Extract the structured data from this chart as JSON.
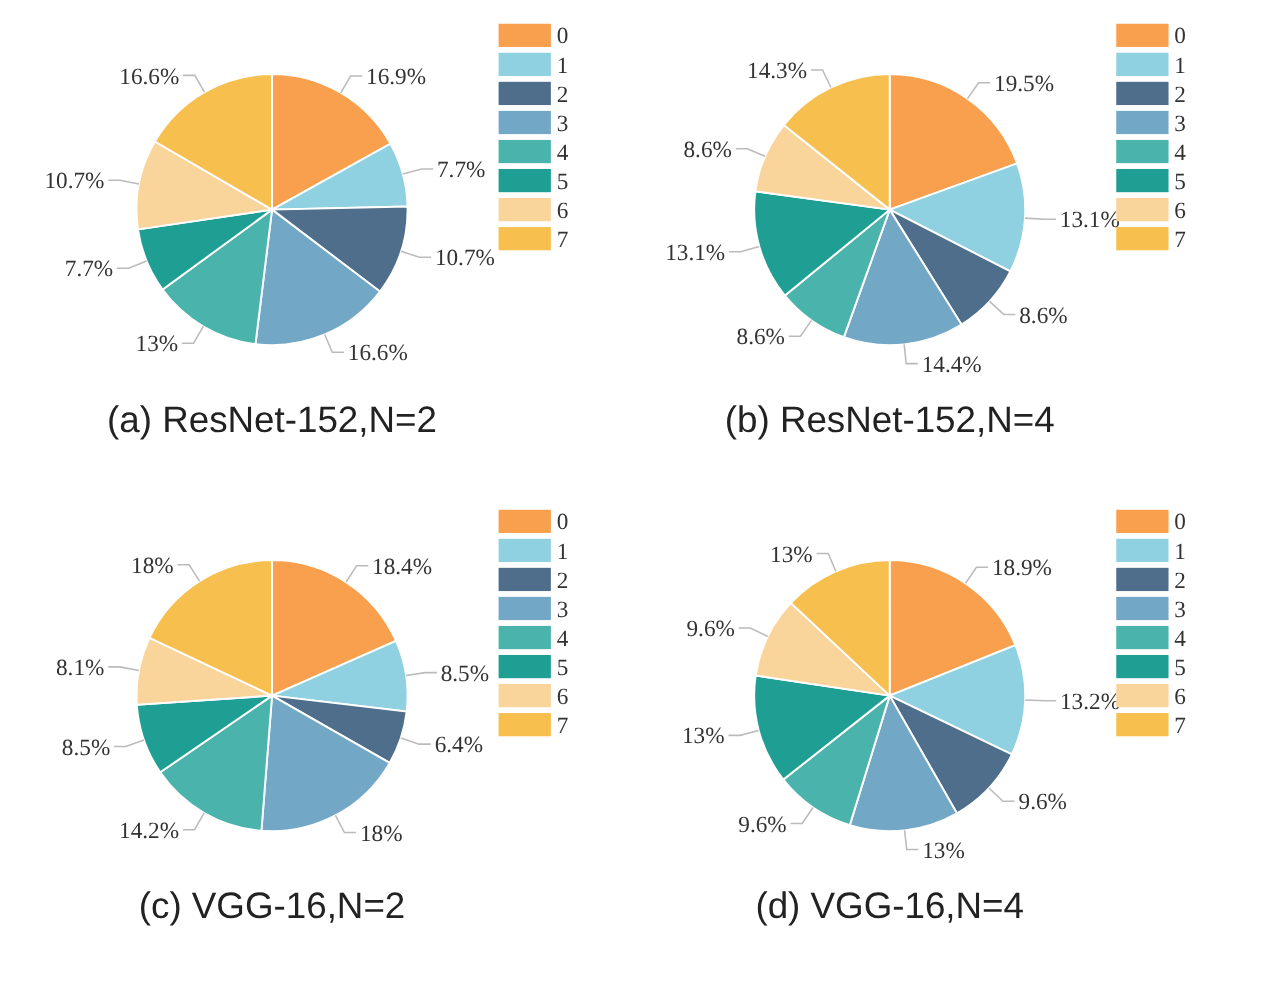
{
  "chart_data": [
    {
      "type": "pie",
      "title": "(a) ResNet-152,N=2",
      "categories": [
        "0",
        "1",
        "2",
        "3",
        "4",
        "5",
        "6",
        "7"
      ],
      "values": [
        16.9,
        7.7,
        10.7,
        16.6,
        13,
        7.7,
        10.7,
        16.6
      ],
      "value_labels": [
        "16.9%",
        "7.7%",
        "10.7%",
        "16.6%",
        "13%",
        "7.7%",
        "10.7%",
        "16.6%"
      ],
      "colors": [
        "#f9a04f",
        "#8fd1e1",
        "#4e6e8b",
        "#72a8c6",
        "#4ab3ab",
        "#1f9e93",
        "#f9d49b",
        "#f7bf4d"
      ],
      "legend": "right"
    },
    {
      "type": "pie",
      "title": "(b) ResNet-152,N=4",
      "categories": [
        "0",
        "1",
        "2",
        "3",
        "4",
        "5",
        "6",
        "7"
      ],
      "values": [
        19.5,
        13.1,
        8.6,
        14.4,
        8.6,
        13.1,
        8.6,
        14.3
      ],
      "value_labels": [
        "19.5%",
        "13.1%",
        "8.6%",
        "14.4%",
        "8.6%",
        "13.1%",
        "8.6%",
        "14.3%"
      ],
      "colors": [
        "#f9a04f",
        "#8fd1e1",
        "#4e6e8b",
        "#72a8c6",
        "#4ab3ab",
        "#1f9e93",
        "#f9d49b",
        "#f7bf4d"
      ],
      "legend": "right"
    },
    {
      "type": "pie",
      "title": "(c) VGG-16,N=2",
      "categories": [
        "0",
        "1",
        "2",
        "3",
        "4",
        "5",
        "6",
        "7"
      ],
      "values": [
        18.4,
        8.5,
        6.4,
        18,
        14.2,
        8.5,
        8.1,
        18
      ],
      "value_labels": [
        "18.4%",
        "8.5%",
        "6.4%",
        "18%",
        "14.2%",
        "8.5%",
        "8.1%",
        "18%"
      ],
      "colors": [
        "#f9a04f",
        "#8fd1e1",
        "#4e6e8b",
        "#72a8c6",
        "#4ab3ab",
        "#1f9e93",
        "#f9d49b",
        "#f7bf4d"
      ],
      "legend": "right"
    },
    {
      "type": "pie",
      "title": "(d) VGG-16,N=4",
      "categories": [
        "0",
        "1",
        "2",
        "3",
        "4",
        "5",
        "6",
        "7"
      ],
      "values": [
        18.9,
        13.2,
        9.6,
        13,
        9.6,
        13,
        9.6,
        13
      ],
      "value_labels": [
        "18.9%",
        "13.2%",
        "9.6%",
        "13%",
        "9.6%",
        "13%",
        "9.6%",
        "13%"
      ],
      "colors": [
        "#f9a04f",
        "#8fd1e1",
        "#4e6e8b",
        "#72a8c6",
        "#4ab3ab",
        "#1f9e93",
        "#f9d49b",
        "#f7bf4d"
      ],
      "legend": "right"
    }
  ]
}
